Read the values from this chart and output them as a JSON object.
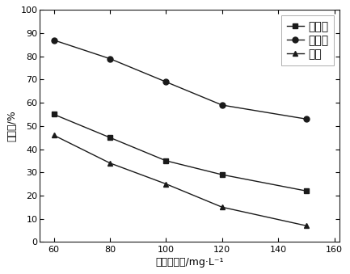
{
  "x": [
    60,
    80,
    100,
    120,
    150
  ],
  "magnetite": [
    55,
    45,
    35,
    29,
    22
  ],
  "hematite": [
    87,
    79,
    69,
    59,
    53
  ],
  "quartz": [
    46,
    34,
    25,
    15,
    7
  ],
  "xlabel": "捕收剂用量/mg·L⁻¹",
  "ylabel": "回收率/%",
  "xlim": [
    55,
    162
  ],
  "ylim": [
    0,
    100
  ],
  "xticks": [
    60,
    80,
    100,
    120,
    140,
    160
  ],
  "yticks": [
    0,
    10,
    20,
    30,
    40,
    50,
    60,
    70,
    80,
    90,
    100
  ],
  "legend_magnetite": "磁铁矿",
  "legend_hematite": "赤铁矿",
  "legend_quartz": "石英",
  "line_color": "#1a1a1a",
  "bg_color": "#ffffff",
  "marker_size": 5,
  "line_width": 1.0
}
